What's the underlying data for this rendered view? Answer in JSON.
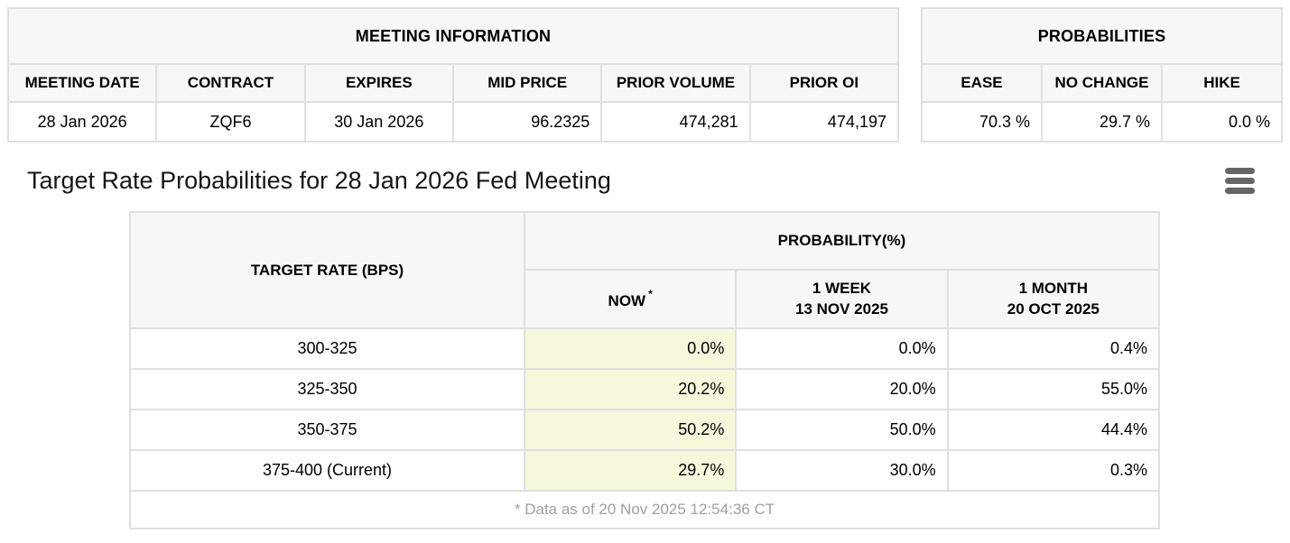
{
  "meeting_information": {
    "title": "MEETING INFORMATION",
    "columns": [
      "MEETING DATE",
      "CONTRACT",
      "EXPIRES",
      "MID PRICE",
      "PRIOR VOLUME",
      "PRIOR OI"
    ],
    "row": {
      "meeting_date": "28 Jan 2026",
      "contract": "ZQF6",
      "expires": "30 Jan 2026",
      "mid_price": "96.2325",
      "prior_volume": "474,281",
      "prior_oi": "474,197"
    }
  },
  "probabilities": {
    "title": "PROBABILITIES",
    "columns": [
      "EASE",
      "NO CHANGE",
      "HIKE"
    ],
    "row": {
      "ease": "70.3 %",
      "no_change": "29.7 %",
      "hike": "0.0 %"
    }
  },
  "section": {
    "title": "Target Rate Probabilities for 28 Jan 2026 Fed Meeting"
  },
  "target_rate_table": {
    "col_target_rate": "TARGET RATE (BPS)",
    "col_probability": "PROBABILITY(%)",
    "col_now": "NOW",
    "now_asterisk": "*",
    "col_week_line1": "1 WEEK",
    "col_week_line2": "13 NOV 2025",
    "col_month_line1": "1 MONTH",
    "col_month_line2": "20 OCT 2025",
    "rows": [
      {
        "rate": "300-325",
        "now": "0.0%",
        "week": "0.0%",
        "month": "0.4%"
      },
      {
        "rate": "325-350",
        "now": "20.2%",
        "week": "20.0%",
        "month": "55.0%"
      },
      {
        "rate": "350-375",
        "now": "50.2%",
        "week": "50.0%",
        "month": "44.4%"
      },
      {
        "rate": "375-400 (Current)",
        "now": "29.7%",
        "week": "30.0%",
        "month": "0.3%"
      }
    ],
    "footnote": "* Data as of 20 Nov 2025 12:54:36 CT"
  },
  "colors": {
    "header_bg": "#f7f7f7",
    "border": "#e0e0e0",
    "now_highlight": "#f7f7dc",
    "footnote_text": "#a0a0a0",
    "menu_icon": "#666666"
  }
}
